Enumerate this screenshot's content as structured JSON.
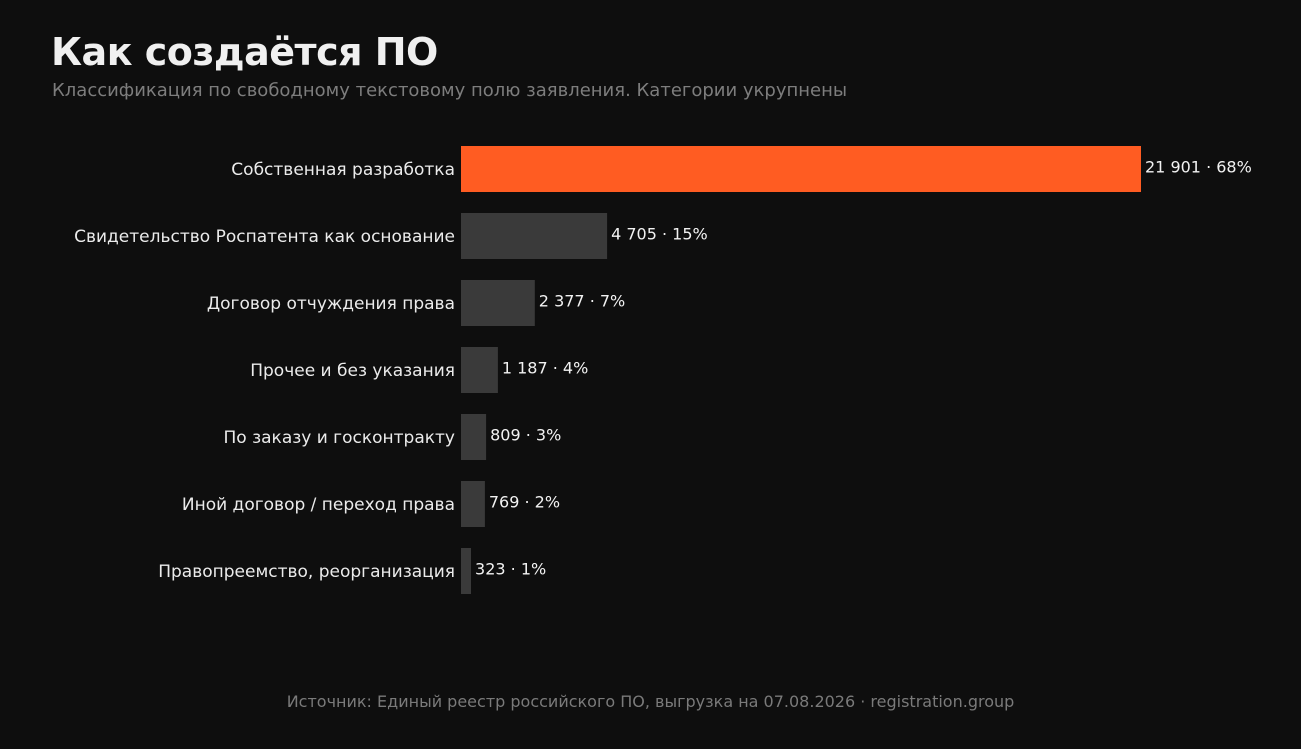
{
  "header": {
    "title": "Как создаётся ПО",
    "subtitle": "Классификация по свободному текстовому полю заявления. Категории укрупнены"
  },
  "chart_data": {
    "type": "bar",
    "orientation": "horizontal",
    "title": "Как создаётся ПО",
    "subtitle": "Классификация по свободному текстовому полю заявления. Категории укрупнены",
    "categories": [
      "Собственная разработка",
      "Свидетельство Роспатента как основание",
      "Договор отчуждения права",
      "Прочее и без указания",
      "По заказу и госконтракту",
      "Иной договор / переход права",
      "Правопреемство, реорганизация"
    ],
    "values": [
      21901,
      4705,
      2377,
      1187,
      809,
      769,
      323
    ],
    "value_labels": [
      "21 901",
      "4 705",
      "2 377",
      "1 187",
      "809",
      "769",
      "323"
    ],
    "percent_labels": [
      "68%",
      "15%",
      "7%",
      "4%",
      "3%",
      "2%",
      "1%"
    ],
    "label_separator": "·",
    "highlight_index": 0,
    "colors": {
      "highlight": "#ff5c22",
      "bar": "#3a3a3a",
      "label": "#ebebeb",
      "value_label": "#f2f2f2"
    },
    "xlim": [
      0,
      21901
    ],
    "grid": false,
    "legend": "none",
    "xlabel": "",
    "ylabel": ""
  },
  "footer": {
    "source": "Источник: Единый реестр российского ПО, выгрузка на 07.08.2026  ·  registration.group"
  }
}
